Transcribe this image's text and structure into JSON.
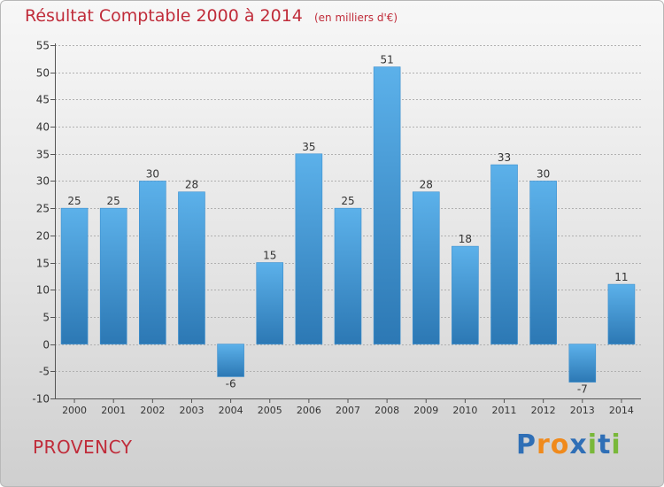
{
  "title": "Résultat Comptable 2000 à 2014",
  "unit": "(en milliers d'€)",
  "town": "PROVENCY",
  "logo": {
    "text": "Proxiti",
    "letters": [
      "P",
      "r",
      "o",
      "x",
      "i",
      "t",
      "i"
    ],
    "colors": [
      "#2f6fb6",
      "#f08a1c",
      "#f08a1c",
      "#2f6fb6",
      "#79b83a",
      "#2f6fb6",
      "#79b83a"
    ]
  },
  "colors": {
    "bar_top": "#5cb1ea",
    "bar_bottom": "#2c78b4",
    "title": "#c02c3a",
    "grid": "#b0b0b0"
  },
  "chart_data": {
    "type": "bar",
    "title": "Résultat Comptable 2000 à 2014",
    "subtitle": "(en milliers d'€)",
    "xlabel": "",
    "ylabel": "",
    "ylim": [
      -10,
      55
    ],
    "yticks": [
      -10,
      -5,
      0,
      5,
      10,
      15,
      20,
      25,
      30,
      35,
      40,
      45,
      50,
      55
    ],
    "grid": true,
    "categories": [
      "2000",
      "2001",
      "2002",
      "2003",
      "2004",
      "2005",
      "2006",
      "2007",
      "2008",
      "2009",
      "2010",
      "2011",
      "2012",
      "2013",
      "2014"
    ],
    "values": [
      25,
      25,
      30,
      28,
      -6,
      15,
      35,
      25,
      51,
      28,
      18,
      33,
      30,
      -7,
      11
    ]
  }
}
